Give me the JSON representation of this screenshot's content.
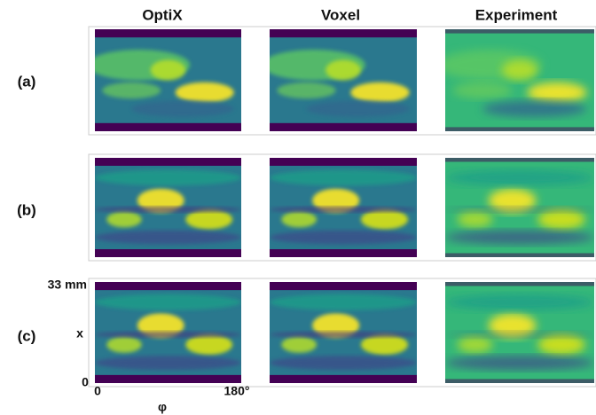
{
  "columns": [
    "OptiX",
    "Voxel",
    "Experiment"
  ],
  "rows": [
    "(a)",
    "(b)",
    "(c)"
  ],
  "axis": {
    "y_top": "33 mm",
    "y_label": "x",
    "y_bottom": "0",
    "x_left": "0",
    "x_right": "180°",
    "x_label": "φ"
  }
}
